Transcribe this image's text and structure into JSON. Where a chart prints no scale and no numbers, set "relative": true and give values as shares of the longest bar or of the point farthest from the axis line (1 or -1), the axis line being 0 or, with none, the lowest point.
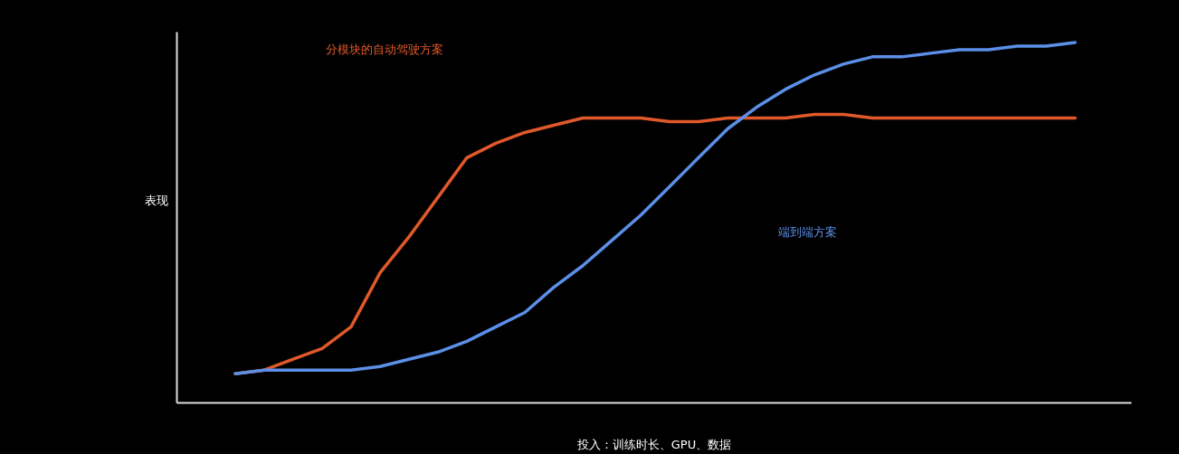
{
  "chart_data": {
    "type": "line",
    "relative": true,
    "xlabel": "投入：训练时长、GPU、数据",
    "ylabel": "表现",
    "grid": false,
    "marker": "none",
    "line_style": "solid",
    "categories": [
      null,
      null,
      null,
      null,
      null,
      null,
      null,
      null,
      null,
      null,
      null,
      null,
      null,
      null,
      null,
      null,
      null,
      null,
      null,
      null,
      null,
      null,
      null,
      null,
      null,
      null,
      null,
      null,
      null,
      null
    ],
    "series": [
      {
        "name": "分模块的自动驾驶方案",
        "color": "#e0592a",
        "values": [
          0.08,
          0.09,
          0.12,
          0.15,
          0.21,
          0.36,
          0.46,
          0.57,
          0.68,
          0.72,
          0.75,
          0.77,
          0.79,
          0.79,
          0.79,
          0.78,
          0.78,
          0.79,
          0.79,
          0.79,
          0.8,
          0.8,
          0.79,
          0.79,
          0.79,
          0.79,
          0.79,
          0.79,
          0.79,
          0.79
        ]
      },
      {
        "name": "端到端方案",
        "color": "#5b8fe8",
        "values": [
          0.08,
          0.09,
          0.09,
          0.09,
          0.09,
          0.1,
          0.12,
          0.14,
          0.17,
          0.21,
          0.25,
          0.32,
          0.38,
          0.45,
          0.52,
          0.6,
          0.68,
          0.76,
          0.82,
          0.87,
          0.91,
          0.94,
          0.96,
          0.96,
          0.97,
          0.98,
          0.98,
          0.99,
          0.99,
          1.0
        ]
      }
    ]
  }
}
